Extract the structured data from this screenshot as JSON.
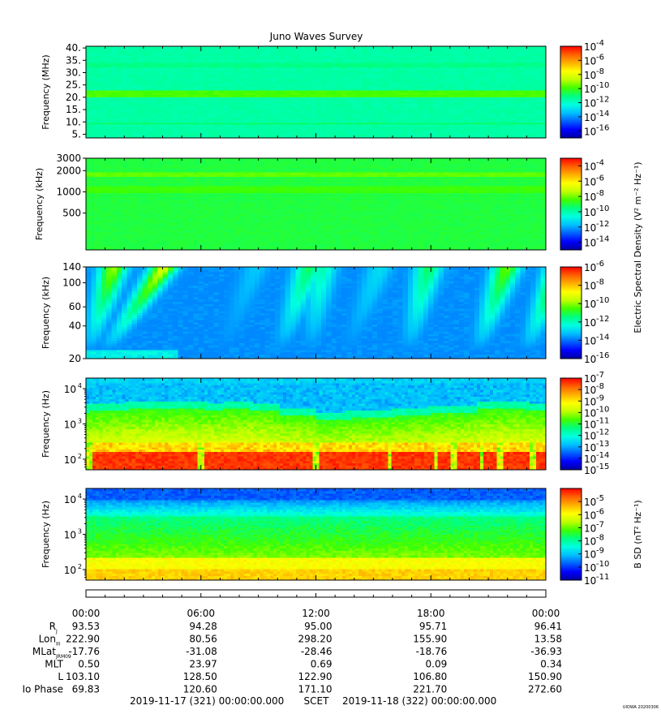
{
  "title": "Juno Waves Survey",
  "watermark": "UIOWA 20200306",
  "colors": {
    "background": "#ffffff",
    "axis": "#000000",
    "colormap": [
      "#0000a0",
      "#0000ff",
      "#0060ff",
      "#00c0ff",
      "#00ffe0",
      "#00ff80",
      "#40ff00",
      "#c0ff00",
      "#ffff00",
      "#ffb000",
      "#ff6000",
      "#ff0000"
    ]
  },
  "chart_data": [
    {
      "type": "heatmap",
      "name": "panel-1",
      "ylabel": "Frequency (MHz)",
      "yscale": "linear",
      "ylim": [
        3.5,
        40.7
      ],
      "yticks": [
        {
          "value": 5,
          "label": "5."
        },
        {
          "value": 10,
          "label": "10."
        },
        {
          "value": 15,
          "label": "15."
        },
        {
          "value": 20,
          "label": "20."
        },
        {
          "value": 25,
          "label": "25."
        },
        {
          "value": 30,
          "label": "30."
        },
        {
          "value": 35,
          "label": "35."
        },
        {
          "value": 40,
          "label": "40."
        }
      ],
      "background_level": 0.42,
      "bands": [
        {
          "from": 20.3,
          "to": 23.0,
          "level": 0.55
        },
        {
          "from": 9.0,
          "to": 10.0,
          "level": 0.46
        },
        {
          "from": 32.0,
          "to": 34.0,
          "level": 0.45
        }
      ],
      "colorbar": {
        "scale": "log",
        "range": [
          1e-17,
          0.0001
        ],
        "ticks": [
          {
            "value": -4,
            "base": "10",
            "exp": "-4"
          },
          {
            "value": -6,
            "base": "10",
            "exp": "-6"
          },
          {
            "value": -8,
            "base": "10",
            "exp": "-8"
          },
          {
            "value": -10,
            "base": "10",
            "exp": "-10"
          },
          {
            "value": -12,
            "base": "10",
            "exp": "-12"
          },
          {
            "value": -14,
            "base": "10",
            "exp": "-14"
          },
          {
            "value": -16,
            "base": "10",
            "exp": "-16"
          }
        ],
        "label": ""
      }
    },
    {
      "type": "heatmap",
      "name": "panel-2",
      "ylabel": "Frequency (kHz)",
      "yscale": "log",
      "ylim": [
        150,
        3000
      ],
      "yticks": [
        {
          "value": 500,
          "label": "500"
        },
        {
          "value": 1000,
          "label": "1000"
        },
        {
          "value": 2000,
          "label": "2000"
        },
        {
          "value": 3000,
          "label": "3000"
        }
      ],
      "background_level": 0.5,
      "bands": [
        {
          "from": 1600,
          "to": 1900,
          "level": 0.57
        },
        {
          "from": 1000,
          "to": 1250,
          "level": 0.54
        }
      ],
      "colorbar": {
        "scale": "log",
        "range": [
          1e-15,
          0.001
        ],
        "ticks": [
          {
            "value": -4,
            "base": "10",
            "exp": "-4"
          },
          {
            "value": -6,
            "base": "10",
            "exp": "-6"
          },
          {
            "value": -8,
            "base": "10",
            "exp": "-8"
          },
          {
            "value": -10,
            "base": "10",
            "exp": "-10"
          },
          {
            "value": -12,
            "base": "10",
            "exp": "-12"
          },
          {
            "value": -14,
            "base": "10",
            "exp": "-14"
          }
        ],
        "label": "Electric Spectral Density (V² m⁻² Hz⁻¹)"
      }
    },
    {
      "type": "heatmap",
      "name": "panel-3",
      "ylabel": "Frequency (kHz)",
      "yscale": "log",
      "ylim": [
        20,
        140
      ],
      "yticks": [
        {
          "value": 20,
          "label": "20"
        },
        {
          "value": 40,
          "label": "40"
        },
        {
          "value": 60,
          "label": "60"
        },
        {
          "value": 100,
          "label": "100"
        },
        {
          "value": 140,
          "label": "140"
        }
      ],
      "background_level": 0.22,
      "colorbar": {
        "scale": "log",
        "range": [
          1e-16,
          1e-06
        ],
        "ticks": [
          {
            "value": -6,
            "base": "10",
            "exp": "-6"
          },
          {
            "value": -8,
            "base": "10",
            "exp": "-8"
          },
          {
            "value": -10,
            "base": "10",
            "exp": "-10"
          },
          {
            "value": -12,
            "base": "10",
            "exp": "-12"
          },
          {
            "value": -14,
            "base": "10",
            "exp": "-14"
          },
          {
            "value": -16,
            "base": "10",
            "exp": "-16"
          }
        ],
        "label": ""
      }
    },
    {
      "type": "heatmap",
      "name": "panel-4",
      "ylabel": "Frequency (Hz)",
      "yscale": "log",
      "ylim": [
        50,
        20000
      ],
      "yticks": [
        {
          "value": 100,
          "base": "10",
          "exp": "2"
        },
        {
          "value": 1000,
          "base": "10",
          "exp": "3"
        },
        {
          "value": 10000,
          "base": "10",
          "exp": "4"
        }
      ],
      "colorbar": {
        "scale": "log",
        "range": [
          1e-15,
          1e-07
        ],
        "ticks": [
          {
            "value": -7,
            "base": "10",
            "exp": "-7"
          },
          {
            "value": -8,
            "base": "10",
            "exp": "-8"
          },
          {
            "value": -9,
            "base": "10",
            "exp": "-9"
          },
          {
            "value": -10,
            "base": "10",
            "exp": "-10"
          },
          {
            "value": -11,
            "base": "10",
            "exp": "-11"
          },
          {
            "value": -12,
            "base": "10",
            "exp": "-12"
          },
          {
            "value": -13,
            "base": "10",
            "exp": "-13"
          },
          {
            "value": -14,
            "base": "10",
            "exp": "-14"
          },
          {
            "value": -15,
            "base": "10",
            "exp": "-15"
          }
        ],
        "label": ""
      }
    },
    {
      "type": "heatmap",
      "name": "panel-5",
      "ylabel": "Frequency (Hz)",
      "yscale": "log",
      "ylim": [
        50,
        20000
      ],
      "yticks": [
        {
          "value": 100,
          "base": "10",
          "exp": "2"
        },
        {
          "value": 1000,
          "base": "10",
          "exp": "3"
        },
        {
          "value": 10000,
          "base": "10",
          "exp": "4"
        }
      ],
      "colorbar": {
        "scale": "log",
        "range": [
          1e-11,
          0.0001
        ],
        "ticks": [
          {
            "value": -5,
            "base": "10",
            "exp": "-5"
          },
          {
            "value": -6,
            "base": "10",
            "exp": "-6"
          },
          {
            "value": -7,
            "base": "10",
            "exp": "-7"
          },
          {
            "value": -8,
            "base": "10",
            "exp": "-8"
          },
          {
            "value": -9,
            "base": "10",
            "exp": "-9"
          },
          {
            "value": -10,
            "base": "10",
            "exp": "-10"
          },
          {
            "value": -11,
            "base": "10",
            "exp": "-11"
          }
        ],
        "label": "B SD (nT² Hz⁻¹)"
      }
    }
  ],
  "time_axis": {
    "ticks": [
      "00:00",
      "06:00",
      "12:00",
      "18:00",
      "00:00"
    ],
    "rows": [
      {
        "label": "R",
        "sub": "J",
        "values": [
          "93.53",
          "94.28",
          "95.00",
          "95.71",
          "96.41"
        ]
      },
      {
        "label": "Lon",
        "sub": "III",
        "values": [
          "222.90",
          "80.56",
          "298.20",
          "155.90",
          "13.58"
        ]
      },
      {
        "label": "MLat",
        "sub": "JRM09",
        "values": [
          "-17.76",
          "-31.08",
          "-28.46",
          "-18.76",
          "-36.93"
        ]
      },
      {
        "label": "MLT",
        "sub": "",
        "values": [
          "0.50",
          "23.97",
          "0.69",
          "0.09",
          "0.34"
        ]
      },
      {
        "label": "L",
        "sub": "",
        "values": [
          "103.10",
          "128.50",
          "122.90",
          "106.80",
          "150.90"
        ]
      },
      {
        "label": "Io Phase",
        "sub": "",
        "values": [
          "69.83",
          "120.60",
          "171.10",
          "221.70",
          "272.60"
        ]
      }
    ],
    "start": "2019-11-17 (321) 00:00:00.000",
    "scet": "SCET",
    "end": "2019-11-18 (322) 00:00:00.000"
  }
}
